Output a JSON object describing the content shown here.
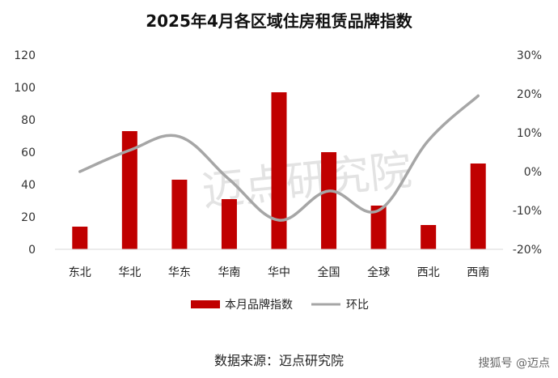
{
  "title": "2025年4月各区域住房租赁品牌指数",
  "source": "数据来源：迈点研究院",
  "footer_tag": "搜狐号 @迈点",
  "watermark": "迈点研究院",
  "colors": {
    "bar": "#c00000",
    "line": "#a6a6a6"
  },
  "chart_data": {
    "type": "bar",
    "categories": [
      "东北",
      "华北",
      "华东",
      "华南",
      "华中",
      "全国",
      "全球",
      "西北",
      "西南"
    ],
    "series": [
      {
        "name": "本月品牌指数",
        "type": "bar",
        "axis": "left",
        "values": [
          14,
          73,
          43,
          31,
          97,
          60,
          27,
          15,
          53
        ]
      },
      {
        "name": "环比",
        "type": "line",
        "axis": "right",
        "smooth": true,
        "values": [
          0.0,
          5.5,
          9.0,
          -2.0,
          -12.5,
          -5.0,
          -10.0,
          8.0,
          19.5
        ]
      }
    ],
    "y_left": {
      "min": 0,
      "max": 120,
      "ticks": [
        0,
        20,
        40,
        60,
        80,
        100,
        120
      ]
    },
    "y_right": {
      "min": -20,
      "max": 30,
      "ticks": [
        "-20%",
        "-10%",
        "0%",
        "10%",
        "20%",
        "30%"
      ]
    },
    "grid": false,
    "legend_position": "bottom"
  }
}
